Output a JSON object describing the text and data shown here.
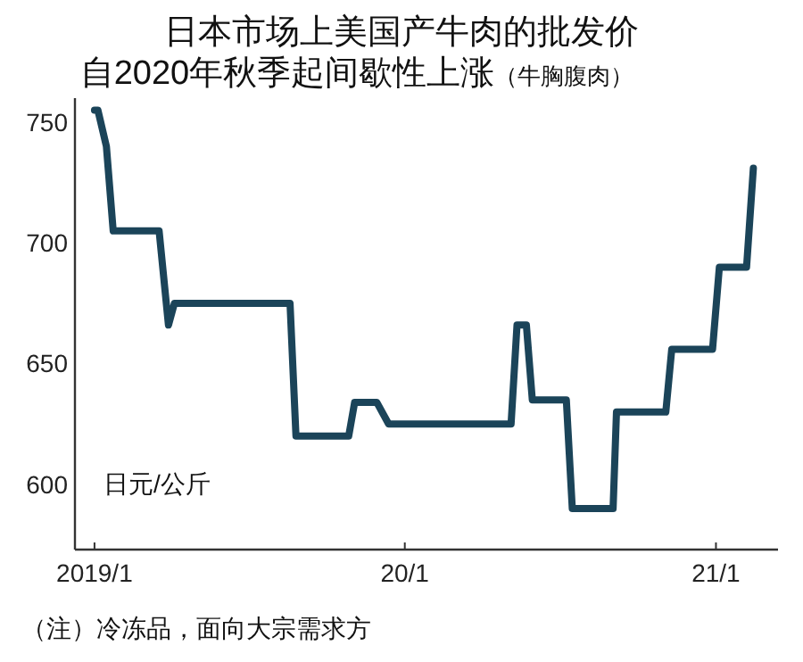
{
  "chart_data": {
    "type": "line",
    "title": "日本市场上美国产牛肉的批发价自2020年秋季起间歇性上涨",
    "subtitle": "（牛胸腹肉）",
    "ylabel": "日元/公斤",
    "annotations": [
      "（注）冷冻品，面向大宗需求方"
    ],
    "x": [
      "2019-01-01",
      "2019-01-05",
      "2019-01-15",
      "2019-01-23",
      "2019-03-18",
      "2019-03-29",
      "2019-04-05",
      "2019-08-19",
      "2019-08-26",
      "2019-10-27",
      "2019-11-03",
      "2019-11-29",
      "2019-12-13",
      "2020-05-05",
      "2020-05-12",
      "2020-05-23",
      "2020-05-30",
      "2020-07-09",
      "2020-07-16",
      "2020-09-02",
      "2020-09-06",
      "2020-11-03",
      "2020-11-10",
      "2020-12-28",
      "2021-01-05",
      "2021-02-06",
      "2021-02-14"
    ],
    "series": [
      {
        "color": "#1b4459",
        "values": [
          755,
          755,
          740,
          705,
          705,
          666,
          675,
          675,
          620,
          620,
          634,
          634,
          625,
          625,
          666,
          666,
          635,
          635,
          590,
          590,
          630,
          630,
          656,
          656,
          690,
          690,
          731
        ]
      }
    ],
    "xlim": [
      "2018-12-09",
      "2021-03-15"
    ],
    "xticks": [
      {
        "value": "2019-01",
        "label": "2019/1"
      },
      {
        "value": "2020-01",
        "label": "20/1"
      },
      {
        "value": "2021-01",
        "label": "21/1"
      }
    ],
    "ylim": [
      573,
      760
    ],
    "yticks": [
      600,
      650,
      700,
      750
    ],
    "grid": false,
    "marker": "none",
    "line_style": "solid"
  }
}
